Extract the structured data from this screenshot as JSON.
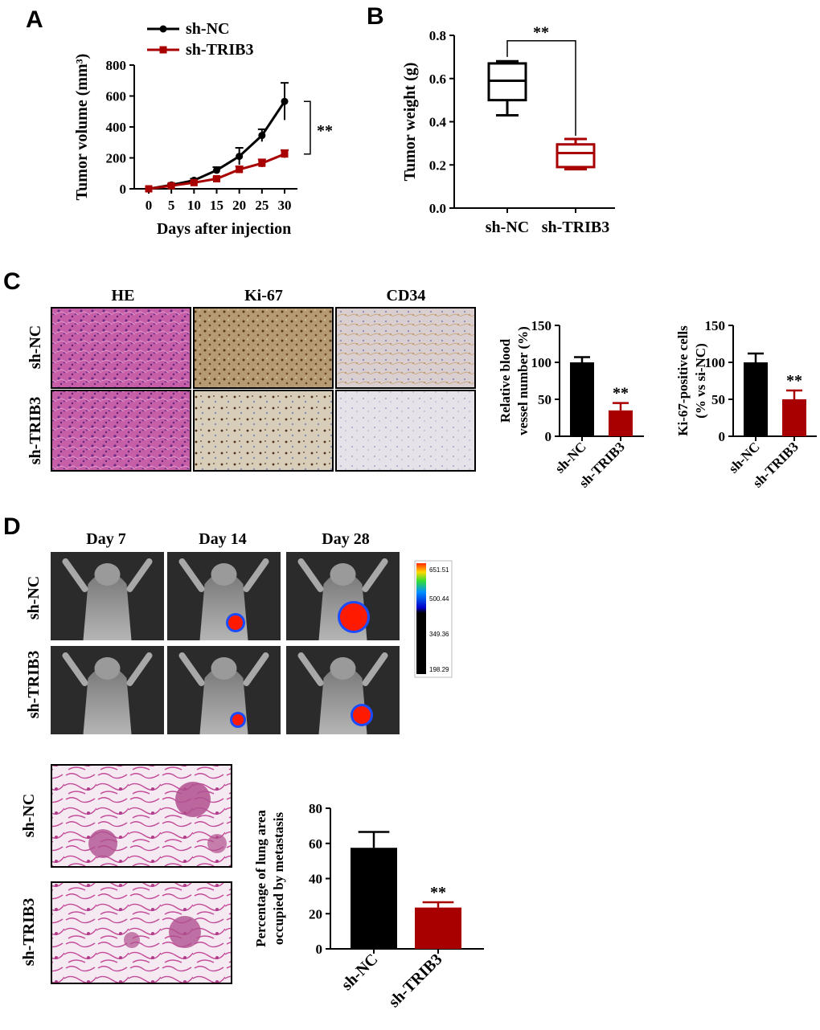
{
  "panels": {
    "A": "A",
    "B": "B",
    "C": "C",
    "D": "D"
  },
  "colors": {
    "nc": "#000000",
    "trib3": "#a80000"
  },
  "sig": "**",
  "chart_data": [
    {
      "id": "A",
      "type": "line",
      "xlabel": "Days after injection",
      "ylabel": "Tumor volume (mm³)",
      "x": [
        0,
        5,
        10,
        15,
        20,
        25,
        30
      ],
      "xlim": [
        0,
        30
      ],
      "ylim": [
        0,
        800
      ],
      "yticks": [
        0,
        200,
        400,
        600,
        800
      ],
      "series": [
        {
          "name": "sh-NC",
          "values": [
            0,
            25,
            55,
            120,
            210,
            345,
            565
          ],
          "errors": [
            0,
            8,
            10,
            20,
            55,
            40,
            120
          ]
        },
        {
          "name": "sh-TRIB3",
          "values": [
            0,
            20,
            40,
            65,
            125,
            165,
            225
          ],
          "errors": [
            0,
            6,
            8,
            10,
            20,
            25,
            25
          ]
        }
      ],
      "annotation": "**"
    },
    {
      "id": "B",
      "type": "box",
      "ylabel": "Tumor weight (g)",
      "ylim": [
        0,
        0.8
      ],
      "yticks": [
        "0.0",
        "0.2",
        "0.4",
        "0.6",
        "0.8"
      ],
      "categories": [
        "sh-NC",
        "sh-TRIB3"
      ],
      "boxes": [
        {
          "min": 0.43,
          "q1": 0.5,
          "median": 0.59,
          "q3": 0.67,
          "max": 0.68
        },
        {
          "min": 0.18,
          "q1": 0.19,
          "median": 0.255,
          "q3": 0.295,
          "max": 0.32
        }
      ],
      "annotation": "**"
    },
    {
      "id": "C-vessels",
      "type": "bar",
      "ylabel_lines": [
        "Relative blood",
        "vessel number (%)"
      ],
      "categories": [
        "sh-NC",
        "sh-TRIB3"
      ],
      "values": [
        100,
        35
      ],
      "errors": [
        7,
        10
      ],
      "ylim": [
        0,
        150
      ],
      "yticks": [
        0,
        50,
        100,
        150
      ],
      "annotation": "**"
    },
    {
      "id": "C-ki67",
      "type": "bar",
      "ylabel_lines": [
        "Ki-67-positive cells",
        "(% vs si-NC)"
      ],
      "categories": [
        "sh-NC",
        "sh-TRIB3"
      ],
      "values": [
        100,
        50
      ],
      "errors": [
        12,
        12
      ],
      "ylim": [
        0,
        150
      ],
      "yticks": [
        0,
        50,
        100,
        150
      ],
      "annotation": "**"
    },
    {
      "id": "D-lung",
      "type": "bar",
      "ylabel_lines": [
        "Percentage of lung area",
        "occupied by metastasis"
      ],
      "categories": [
        "sh-NC",
        "sh-TRIB3"
      ],
      "values": [
        57.5,
        23.5
      ],
      "errors": [
        9,
        3
      ],
      "ylim": [
        0,
        80
      ],
      "yticks": [
        0,
        20,
        40,
        60,
        80
      ],
      "annotation": "**"
    }
  ],
  "histology_C": {
    "columns": [
      "HE",
      "Ki-67",
      "CD34"
    ],
    "rows": [
      "sh-NC",
      "sh-TRIB3"
    ]
  },
  "imaging_D": {
    "columns": [
      "Day 7",
      "Day 14",
      "Day 28"
    ],
    "rows": [
      "sh-NC",
      "sh-TRIB3"
    ],
    "colorbar": [
      "651.51",
      "500.44",
      "349.36",
      "198.29"
    ]
  },
  "lung_D": {
    "rows": [
      "sh-NC",
      "sh-TRIB3"
    ]
  }
}
